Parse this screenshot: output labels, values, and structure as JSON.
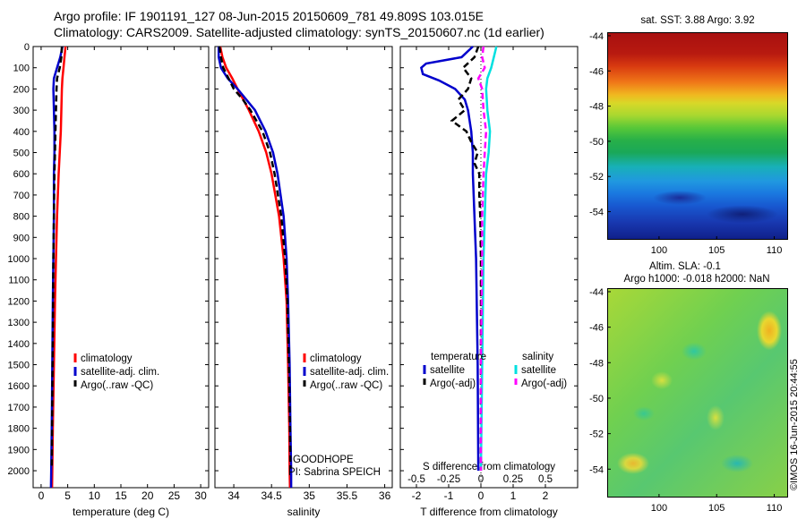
{
  "header": {
    "line1": "Argo profile: IF 1901191_127 08-Jun-2015 20150609_781 49.809S 103.015E",
    "line2": "Climatology: CARS2009. Satellite-adjusted climatology: synTS_20150607.nc (1d earlier)"
  },
  "chart_data": [
    {
      "type": "line",
      "name": "temperature profile",
      "xlabel": "temperature (deg C)",
      "ylabel": "",
      "xlim": [
        -1.5,
        31.5
      ],
      "ylim": [
        2080,
        0
      ],
      "xticks": [
        0,
        5,
        10,
        15,
        20,
        25,
        30
      ],
      "yticks": [
        0,
        100,
        200,
        300,
        400,
        500,
        600,
        700,
        800,
        900,
        1000,
        1100,
        1200,
        1300,
        1400,
        1500,
        1600,
        1700,
        1800,
        1900,
        2000
      ],
      "legend": [
        "climatology",
        "satellite-adj. clim.",
        "Argo(..raw -QC)"
      ],
      "colors": {
        "climatology": "#ff0000",
        "satellite": "#0000cc",
        "argo": "#000000"
      },
      "series": [
        {
          "name": "climatology",
          "depth": [
            0,
            50,
            100,
            150,
            200,
            300,
            400,
            500,
            600,
            800,
            1000,
            1200,
            1500,
            1800,
            2000,
            2080
          ],
          "values": [
            4.6,
            4.4,
            4.2,
            4.0,
            3.9,
            3.8,
            3.7,
            3.5,
            3.3,
            3.0,
            2.8,
            2.6,
            2.4,
            2.2,
            2.1,
            2.05
          ]
        },
        {
          "name": "satellite-adj. clim.",
          "depth": [
            0,
            50,
            100,
            150,
            200,
            300,
            400,
            500,
            600,
            800,
            1000,
            1200,
            1500,
            1800,
            2000,
            2080
          ],
          "values": [
            4.0,
            3.6,
            3.0,
            2.4,
            2.3,
            2.4,
            2.5,
            2.5,
            2.4,
            2.4,
            2.3,
            2.2,
            2.1,
            2.0,
            1.9,
            1.85
          ]
        },
        {
          "name": "Argo(..raw -QC)",
          "depth": [
            0,
            50,
            100,
            150,
            200,
            300,
            400,
            500,
            600,
            800,
            1000,
            1200,
            1500,
            1800,
            1990
          ],
          "values": [
            3.9,
            3.8,
            3.5,
            3.0,
            2.9,
            2.8,
            2.7,
            2.6,
            2.5,
            2.4,
            2.3,
            2.25,
            2.15,
            2.05,
            2.0
          ]
        }
      ]
    },
    {
      "type": "line",
      "name": "salinity profile",
      "xlabel": "salinity",
      "xlim": [
        33.75,
        36.1
      ],
      "ylim": [
        2080,
        0
      ],
      "xticks": [
        34,
        34.5,
        35,
        35.5,
        36
      ],
      "legend": [
        "climatology",
        "satellite-adj. clim.",
        "Argo(..raw -QC)"
      ],
      "annotations": [
        "GOODHOPE",
        "PI: Sabrina SPEICH"
      ],
      "series": [
        {
          "name": "climatology",
          "depth": [
            0,
            50,
            100,
            150,
            200,
            300,
            400,
            500,
            600,
            800,
            1000,
            1200,
            1500,
            1800,
            2000,
            2080
          ],
          "values": [
            33.82,
            33.85,
            33.9,
            33.98,
            34.05,
            34.2,
            34.33,
            34.43,
            34.5,
            34.6,
            34.66,
            34.7,
            34.72,
            34.735,
            34.74,
            34.745
          ]
        },
        {
          "name": "satellite-adj. clim.",
          "depth": [
            0,
            50,
            100,
            150,
            200,
            300,
            400,
            500,
            600,
            800,
            1000,
            1200,
            1500,
            1800,
            2000,
            2080
          ],
          "values": [
            33.8,
            33.8,
            33.83,
            33.92,
            34.05,
            34.28,
            34.42,
            34.52,
            34.58,
            34.66,
            34.7,
            34.72,
            34.74,
            34.75,
            34.76,
            34.76
          ]
        },
        {
          "name": "Argo(..raw -QC)",
          "depth": [
            0,
            50,
            100,
            150,
            200,
            250,
            300,
            400,
            500,
            600,
            800,
            1000,
            1200,
            1500,
            1800,
            1990
          ],
          "values": [
            33.81,
            33.83,
            33.86,
            33.93,
            34.0,
            34.12,
            34.22,
            34.38,
            34.48,
            34.54,
            34.63,
            34.68,
            34.71,
            34.73,
            34.745,
            34.75
          ]
        }
      ]
    },
    {
      "type": "line",
      "name": "difference from climatology",
      "xlabel": "T difference from climatology",
      "xlabel_top": "S difference from climatology",
      "xlim_T": [
        -2.5,
        3.0
      ],
      "xticks_T": [
        -2,
        -1,
        0,
        1,
        2
      ],
      "xticks_S": [
        -0.5,
        -0.25,
        0,
        0.25,
        0.5
      ],
      "xtick_labels_S": [
        "-0.5",
        "-0.25",
        "0",
        "0.25",
        "0.5"
      ],
      "ylim": [
        2080,
        0
      ],
      "legend_headers": [
        "temperature",
        "salinity"
      ],
      "legend": [
        "satellite",
        "Argo(-adj)",
        "satellite",
        "Argo(-adj)"
      ],
      "colors": {
        "T_satellite": "#0000cc",
        "T_argo": "#000000",
        "S_satellite": "#00e0e0",
        "S_argo": "#ff00ff"
      },
      "series": [
        {
          "name": "temperature satellite",
          "depth": [
            0,
            50,
            80,
            100,
            130,
            160,
            200,
            250,
            300,
            400,
            500,
            600,
            800,
            1000,
            1500,
            2000
          ],
          "values": [
            -0.25,
            -0.6,
            -1.7,
            -1.85,
            -1.8,
            -1.3,
            -0.8,
            -0.5,
            -0.4,
            -0.3,
            -0.25,
            -0.25,
            -0.2,
            -0.15,
            -0.1,
            -0.08
          ]
        },
        {
          "name": "temperature Argo(-adj)",
          "depth": [
            0,
            50,
            100,
            150,
            200,
            250,
            300,
            350,
            400,
            450,
            500,
            550,
            600,
            700,
            800,
            1000,
            1500,
            2000
          ],
          "values": [
            -0.08,
            -0.2,
            -0.55,
            -0.3,
            -0.4,
            -0.7,
            -0.5,
            -0.9,
            -0.45,
            -0.3,
            -0.1,
            -0.2,
            -0.05,
            -0.05,
            -0.02,
            0.0,
            0.0,
            0.0
          ]
        },
        {
          "name": "salinity satellite",
          "depth": [
            0,
            50,
            100,
            150,
            200,
            300,
            400,
            500,
            600,
            800,
            1000,
            1500,
            2000
          ],
          "values": [
            0.12,
            0.1,
            0.08,
            0.05,
            0.04,
            0.05,
            0.07,
            0.06,
            0.04,
            0.03,
            0.02,
            0.01,
            0.0
          ]
        },
        {
          "name": "salinity Argo(-adj)",
          "depth": [
            0,
            50,
            100,
            150,
            200,
            300,
            400,
            500,
            600,
            800,
            1000,
            1500,
            2000
          ],
          "values": [
            0.02,
            0.01,
            0.03,
            -0.02,
            0.01,
            0.02,
            0.04,
            0.03,
            0.02,
            0.01,
            0.01,
            0.0,
            0.0
          ]
        }
      ]
    },
    {
      "type": "heatmap",
      "name": "sat SST map",
      "title": "sat. SST: 3.88  Argo: 3.92",
      "xticks": [
        100,
        105,
        110
      ],
      "yticks": [
        -44,
        -46,
        -48,
        -50,
        -52,
        -54
      ],
      "xlim": [
        95.5,
        111.2
      ],
      "ylim": [
        -55.6,
        -43.8
      ]
    },
    {
      "type": "heatmap",
      "name": "altimetry SLA map",
      "title": "Altim. SLA: -0.1",
      "subtitle": "Argo h1000: -0.018 h2000: NaN",
      "xticks": [
        100,
        105,
        110
      ],
      "yticks": [
        -44,
        -46,
        -48,
        -50,
        -52,
        -54
      ],
      "xlim": [
        95.5,
        111.2
      ],
      "ylim": [
        -55.6,
        -43.8
      ]
    }
  ],
  "footer": {
    "stamp": "©IMOS 16-Jun-2015 20:44:55"
  }
}
